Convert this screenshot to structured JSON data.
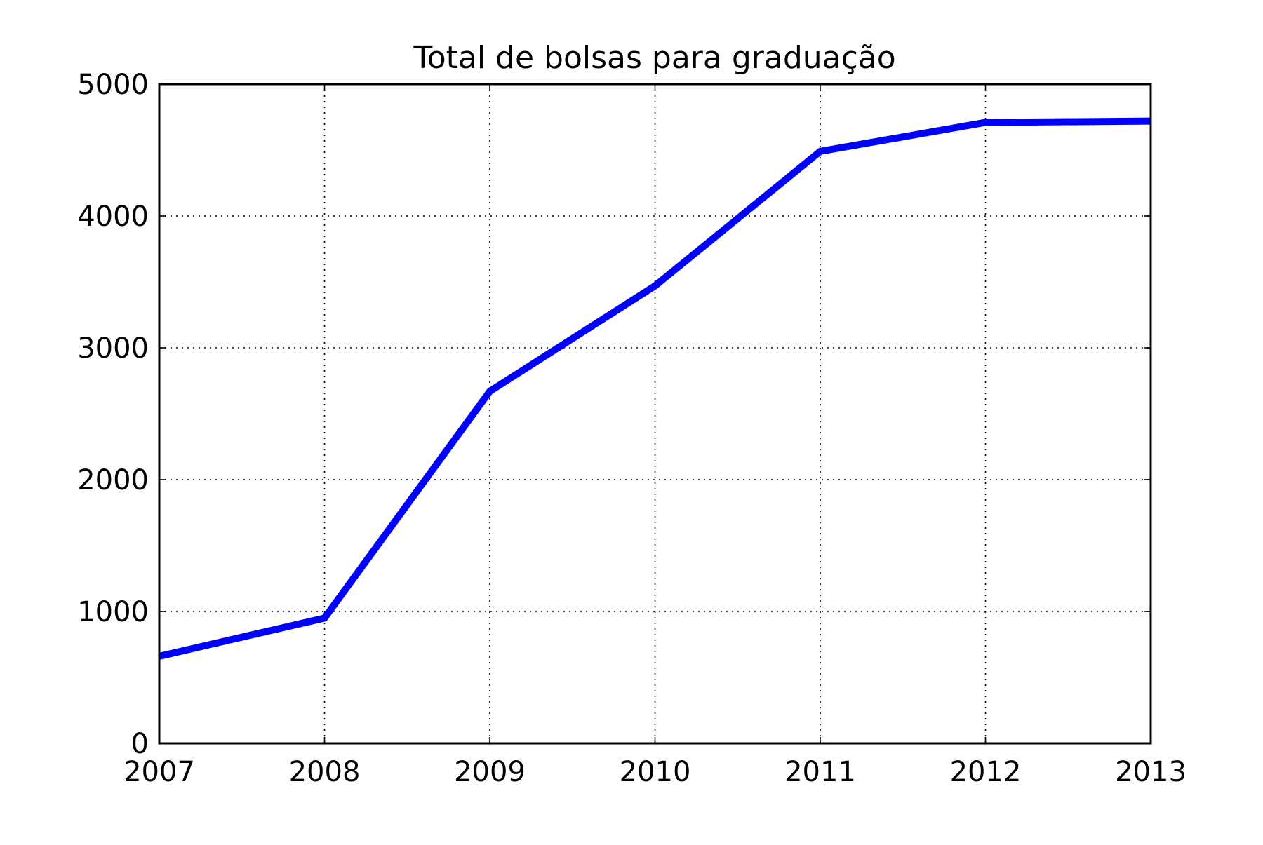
{
  "chart_data": {
    "type": "line",
    "title": "Total de bolsas para graduação",
    "xlabel": "",
    "ylabel": "",
    "x": [
      2007,
      2008,
      2009,
      2010,
      2011,
      2012,
      2013
    ],
    "series": [
      {
        "values": [
          660,
          950,
          2670,
          3470,
          4490,
          4710,
          4720
        ],
        "color": "#0000ff"
      }
    ],
    "xlim": [
      2007,
      2013
    ],
    "ylim": [
      0,
      5000
    ],
    "xticks": [
      "2007",
      "2008",
      "2009",
      "2010",
      "2011",
      "2012",
      "2013"
    ],
    "yticks": [
      "0",
      "1000",
      "2000",
      "3000",
      "4000",
      "5000"
    ],
    "grid": true,
    "grid_style": "dotted",
    "legend": false
  }
}
